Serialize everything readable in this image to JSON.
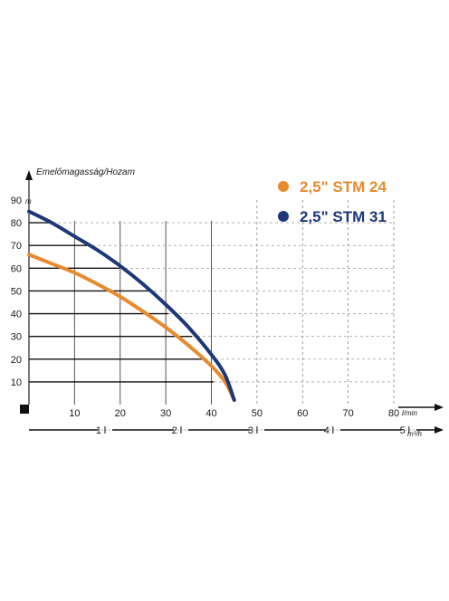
{
  "chart_data": {
    "type": "line",
    "title": "Emelőmagasság/Hozam",
    "y_unit": "m",
    "x_unit": "l/min",
    "x2_unit": "m³/h",
    "xlim": [
      0,
      80
    ],
    "ylim": [
      0,
      90
    ],
    "x_ticks": [
      "10",
      "20",
      "30",
      "40",
      "50",
      "60",
      "70",
      "80"
    ],
    "y_ticks": [
      "10",
      "20",
      "30",
      "40",
      "50",
      "60",
      "70",
      "80",
      "90"
    ],
    "x2_ticks": [
      "1",
      "2",
      "3",
      "4",
      "5"
    ],
    "grid": true,
    "legend": "top-right",
    "series": [
      {
        "name": "2,5\" STM 24",
        "color": "#e88a2e",
        "x": [
          0,
          5,
          10,
          15,
          20,
          25,
          30,
          35,
          40,
          43,
          45
        ],
        "y": [
          66,
          62,
          58,
          53,
          47.5,
          41,
          34,
          26,
          17,
          10,
          2
        ]
      },
      {
        "name": "2,5\" STM 31",
        "color": "#1d3778",
        "x": [
          0,
          5,
          10,
          15,
          20,
          25,
          30,
          35,
          40,
          43,
          45
        ],
        "y": [
          85,
          80,
          74,
          68,
          61,
          53,
          44,
          34,
          22,
          13,
          2
        ]
      }
    ]
  }
}
